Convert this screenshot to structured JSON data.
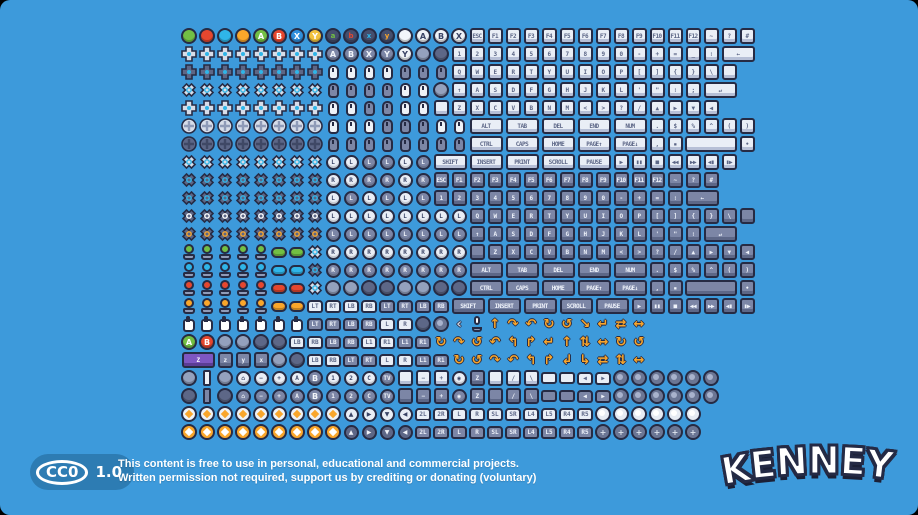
{
  "canvas": {
    "background": "#3d9adb"
  },
  "palette": {
    "outline": "#262b44",
    "key_light": "#e9eef6",
    "key_dark": "#7c86a6",
    "key_purple": "#7e57c2",
    "accent_cyan": "#2fb5e8",
    "accent_orange": "#f9a62b",
    "green": "#72bf44",
    "red": "#e5472f",
    "blue": "#2f8fdd",
    "yellow": "#f9a62b",
    "badge_blue": "#2d7cb3"
  },
  "legend": {
    "c": "circle-button",
    "l": "face-button",
    "lw": "face-button-light",
    "ld": "face-button-dark",
    "s": "small-face-button",
    "g": "plain-button",
    "gd": "plain-button-dark",
    "d": "dpad-plus",
    "dk": "dpad-plus-dark",
    "di": "dpad-diamond",
    "did": "dpad-diamond-dark",
    "o": "dpad-circle",
    "od": "dpad-circle-dark",
    "k": "key",
    "kd": "key-dark",
    "kw": "key-wide",
    "kwd": "key-wide-dark",
    "kwp": "key-wide-purple",
    "q": "key-blank",
    "qd": "key-blank-dark",
    "bks": "backspace-key",
    "bksd": "backspace-key-dark",
    "ent": "enter-key",
    "entd": "enter-key-dark",
    "sp": "spacebar-key",
    "spd": "spacebar-key-dark",
    "m": "mouse",
    "md": "mouse-dark",
    "j": "joystick",
    "v": "pill-button",
    "h": "hand-cursor",
    "w": "console-button",
    "wd": "console-button-dark",
    "wr": "wiimote",
    "wrd": "wiimote-dark",
    "t": "shoulder-button",
    "td": "shoulder-button-dark",
    "tri": "direction-button",
    "trid": "direction-button-dark",
    "b": "trackball",
    "bl": "trackball-light",
    "bp": "trackball-plus",
    "a": "arrow",
    "mic": "microphone",
    "micd": "microphone-dark",
    "tp": "touchpad",
    "tpd": "touchpad-dark",
    "ja": "stick-move",
    "jy": "stick-move-yellow",
    "x": "spacer"
  },
  "grid_rows": [
    [
      "c:#72bf44",
      "c:#e5472f",
      "c:#2fb5e8",
      "c:#f9a62b",
      "l:A:#72bf44",
      "l:B:#e5472f",
      "l:X:#2f8fdd",
      "l:Y:#f2c23e",
      "s:a:#72bf44",
      "s:b:#e5472f",
      "s:x:#2fb5e8",
      "s:y:#f9a62b",
      "c:#f2f5fa",
      "lw:A",
      "lw:B",
      "lw:X",
      "k:ESC",
      "k:F1",
      "k:F2",
      "k:F3",
      "k:F4",
      "k:F5",
      "k:F6",
      "k:F7",
      "k:F8",
      "k:F9",
      "k:F10",
      "k:F11",
      "k:F12",
      "k:~",
      "k:?",
      "k:#"
    ],
    [
      "d",
      "d",
      "d",
      "d",
      "d",
      "d",
      "d",
      "d",
      "ld:A",
      "ld:B",
      "ld:X",
      "ld:Y",
      "lw:Y",
      "g",
      "gd",
      "k:1",
      "k:2",
      "k:3",
      "k:4",
      "k:5",
      "k:6",
      "k:7",
      "k:8",
      "k:9",
      "k:0",
      "k:-",
      "k:+",
      "k:=",
      "k:_",
      "k:∶",
      "bks"
    ],
    [
      "dk",
      "dk",
      "dk",
      "dk",
      "dk",
      "dk",
      "dk",
      "dk",
      "m",
      "m",
      "m",
      "m",
      "md",
      "md",
      "md",
      "k:Q",
      "k:W",
      "k:E",
      "k:R",
      "k:T",
      "k:Y",
      "k:U",
      "k:I",
      "k:O",
      "k:P",
      "k:[",
      "k:]",
      "k:{",
      "k:}",
      "k:\\",
      "q",
      "x"
    ],
    [
      "di",
      "di",
      "di",
      "di",
      "di",
      "di",
      "di",
      "di",
      "md",
      "md",
      "md",
      "md",
      "m",
      "m",
      "g",
      "k:↑",
      "k:A",
      "k:S",
      "k:D",
      "k:F",
      "k:G",
      "k:H",
      "k:J",
      "k:K",
      "k:L",
      "k:'",
      "k:\"",
      "k:∶",
      "k:;",
      "ent",
      "x"
    ],
    [
      "d",
      "d",
      "d",
      "d",
      "d",
      "d",
      "d",
      "d",
      "m",
      "m",
      "md",
      "md",
      "m",
      "m",
      "q",
      "k:Z",
      "k:X",
      "k:C",
      "k:V",
      "k:B",
      "k:N",
      "k:M",
      "k:<",
      "k:>",
      "k:?",
      "k:/",
      "k:▲",
      "k:▶",
      "k:▼",
      "k:◀",
      "x",
      "x"
    ],
    [
      "o",
      "o",
      "o",
      "o",
      "o",
      "o",
      "o",
      "o",
      "m",
      "m",
      "m",
      "md",
      "md",
      "md",
      "m",
      "m",
      "kw:ALT",
      "kw:TAB",
      "kw:DEL",
      "kw:END",
      "kw:NUM",
      "k:.",
      "k:$",
      "k:%",
      "k:^",
      "k:(",
      "k:)"
    ],
    [
      "od",
      "od",
      "od",
      "od",
      "od",
      "od",
      "od",
      "od",
      "md",
      "md",
      "md",
      "md",
      "md",
      "md",
      "md",
      "md",
      "kw:CTRL",
      "kw:CAPS",
      "kw:HOME",
      "kw:PAGE↑",
      "kw:PAGE↓",
      "k:,",
      "k:▪",
      "sp",
      "k:•"
    ],
    [
      "di",
      "di",
      "di",
      "di",
      "di",
      "di",
      "di",
      "di",
      "w:L",
      "w:L",
      "wd:L",
      "wd:L",
      "w:L",
      "wd:L",
      "kw:SHIFT",
      "kw:INSERT",
      "kw:PRINT",
      "kw:SCROLL",
      "kw:PAUSE",
      "k:▶",
      "k:▮▮",
      "k:■",
      "k:◀◀",
      "k:▶▶",
      "k:◀▮",
      "k:▮▶",
      "x"
    ],
    [
      "did",
      "did",
      "did",
      "did",
      "did",
      "did",
      "did",
      "did",
      "w:R",
      "w:R",
      "wd:R",
      "wd:R",
      "w:R",
      "wd:R",
      "kd:ESC",
      "kd:F1",
      "kd:F2",
      "kd:F3",
      "kd:F4",
      "kd:F5",
      "kd:F6",
      "kd:F7",
      "kd:F8",
      "kd:F9",
      "kd:F10",
      "kd:F11",
      "kd:F12",
      "kd:~",
      "kd:?",
      "kd:#",
      "x",
      "x"
    ],
    [
      "did",
      "did",
      "did",
      "did",
      "did",
      "did",
      "did",
      "did",
      "w:L",
      "wd:L",
      "w:L",
      "wd:L",
      "w:L",
      "wd:L",
      "kd:1",
      "kd:2",
      "kd:3",
      "kd:4",
      "kd:5",
      "kd:6",
      "kd:7",
      "kd:8",
      "kd:9",
      "kd:0",
      "kd:-",
      "kd:+",
      "kd:=",
      "kd:∶",
      "bksd",
      "x"
    ],
    [
      "did:w",
      "did:w",
      "did:w",
      "did:w",
      "did:w",
      "did:w",
      "did:w",
      "did:w",
      "w:L",
      "w:L",
      "w:L",
      "w:L",
      "w:L",
      "w:L",
      "w:L",
      "w:L",
      "kd:Q",
      "kd:W",
      "kd:E",
      "kd:R",
      "kd:T",
      "kd:Y",
      "kd:U",
      "kd:I",
      "kd:O",
      "kd:P",
      "kd:[",
      "kd:]",
      "kd:{",
      "kd:}",
      "kd:\\",
      "qd"
    ],
    [
      "did:o",
      "did:o",
      "did:o",
      "did:o",
      "did:o",
      "did:o",
      "did:o",
      "did:o",
      "wd:L",
      "wd:L",
      "wd:L",
      "wd:L",
      "wd:L",
      "wd:L",
      "wd:L",
      "wd:L",
      "kd:↑",
      "kd:A",
      "kd:S",
      "kd:D",
      "kd:F",
      "kd:G",
      "kd:H",
      "kd:J",
      "kd:K",
      "kd:L",
      "kd:'",
      "kd:\"",
      "kd:∶",
      "entd",
      "x"
    ],
    [
      "j:#72bf44",
      "j:#72bf44",
      "j:#72bf44",
      "j:#72bf44",
      "j:#72bf44",
      "v:#72bf44",
      "v:#72bf44",
      "di",
      "w:R",
      "w:R",
      "w:R",
      "w:R",
      "w:R",
      "w:R",
      "w:R",
      "w:R",
      "qd",
      "kd:Z",
      "kd:X",
      "kd:C",
      "kd:V",
      "kd:B",
      "kd:N",
      "kd:M",
      "kd:<",
      "kd:>",
      "kd:?",
      "kd:/",
      "kd:▲",
      "kd:▶",
      "kd:▼",
      "kd:◀"
    ],
    [
      "j:#2fb5e8",
      "j:#2fb5e8",
      "j:#2fb5e8",
      "j:#2fb5e8",
      "j:#2fb5e8",
      "v:#2fb5e8",
      "v:#2fb5e8",
      "did",
      "wd:R",
      "wd:R",
      "wd:R",
      "wd:R",
      "wd:R",
      "wd:R",
      "wd:R",
      "wd:R",
      "kwd:ALT",
      "kwd:TAB",
      "kwd:DEL",
      "kwd:END",
      "kwd:NUM",
      "kd:.",
      "kd:$",
      "kd:%",
      "kd:^",
      "kd:(",
      "kd:)"
    ],
    [
      "j:#e5472f",
      "j:#e5472f",
      "j:#e5472f",
      "j:#e5472f",
      "j:#e5472f",
      "v:#e5472f",
      "v:#e5472f",
      "di",
      "g",
      "g",
      "gd",
      "gd",
      "g",
      "g",
      "gd",
      "gd",
      "kwd:CTRL",
      "kwd:CAPS",
      "kwd:HOME",
      "kwd:PAGE↑",
      "kwd:PAGE↓",
      "kd:,",
      "kd:▪",
      "spd",
      "kd:•"
    ],
    [
      "j:#f9a62b",
      "j:#f9a62b",
      "j:#f9a62b",
      "j:#f9a62b",
      "j:#f9a62b",
      "v:#f9a62b",
      "v:#f9a62b",
      "t:LT",
      "t:RT",
      "t:LB",
      "t:RB",
      "td:LT",
      "td:RT",
      "td:LB",
      "td:RB",
      "kwd:SHIFT",
      "kwd:INSERT",
      "kwd:PRINT",
      "kwd:SCROLL",
      "kwd:PAUSE",
      "kd:▶",
      "kd:▮▮",
      "kd:■",
      "kd:◀◀",
      "kd:▶▶",
      "kd:◀▮",
      "kd:▮▶",
      "x"
    ],
    [
      "h",
      "h",
      "h",
      "h",
      "h",
      "h",
      "h",
      "td:LT",
      "td:RT",
      "td:LB",
      "td:RB",
      "t:L",
      "t:R",
      "gd",
      "b",
      "a:‹:#cfd6e4",
      "mic",
      "a:↑",
      "a:↷",
      "a:↶",
      "a:↻",
      "a:↺",
      "a:↘",
      "a:↵",
      "a:⇄",
      "a:↔",
      "x",
      "x",
      "x",
      "x",
      "x",
      "x"
    ],
    [
      "l:A:#72bf44",
      "l:B:#e5472f",
      "g",
      "g",
      "gd",
      "gd",
      "t:LB",
      "t:RB",
      "td:LB",
      "td:RB",
      "t:L1",
      "t:R1",
      "td:L1",
      "td:R1",
      "a:↻",
      "a:↷",
      "a:↺",
      "a:↶",
      "a:↰",
      "a:↱",
      "a:↵",
      "a:↑",
      "a:⇅",
      "a:↔",
      "a:↻",
      "a:↺",
      "x",
      "x",
      "x",
      "x",
      "x",
      "x"
    ],
    [
      "kwp:Z",
      "kd:z",
      "kd:y",
      "kd:x",
      "g",
      "gd",
      "t:LB",
      "t:RB",
      "td:LT",
      "td:RT",
      "t:L",
      "t:R",
      "td:L1",
      "td:R1",
      "a:↻",
      "a:↺",
      "a:↷",
      "a:↶",
      "a:↰",
      "a:↱",
      "a:↲",
      "a:↳",
      "a:⇄",
      "a:⇅",
      "a:↔",
      "x",
      "x",
      "x",
      "x",
      "x",
      "x"
    ],
    [
      "g",
      "wr",
      "g",
      "w:⌂",
      "w:−",
      "w:+",
      "w:A",
      "ld:B",
      "w:1",
      "w:2",
      "w:C",
      "wd:TV",
      "q",
      "k:−",
      "k:+",
      "w:◉",
      "kd:Z",
      "q",
      "k:/",
      "k:\\",
      "tp",
      "tp",
      "t:◀",
      "t:▶",
      "b",
      "b",
      "b",
      "b",
      "b",
      "b",
      "x",
      "x"
    ],
    [
      "gd",
      "wrd",
      "gd",
      "wd:⌂",
      "wd:−",
      "wd:+",
      "wd:A",
      "ld:B",
      "wd:1",
      "wd:2",
      "wd:C",
      "wd:TV",
      "qd",
      "kd:−",
      "kd:+",
      "wd:◉",
      "kd:Z",
      "qd",
      "kd:/",
      "kd:\\",
      "tpd",
      "tpd",
      "td:◀",
      "td:▶",
      "b",
      "b",
      "b",
      "b",
      "b",
      "b",
      "x",
      "x"
    ],
    [
      "ja",
      "ja",
      "ja",
      "ja",
      "ja",
      "ja",
      "ja",
      "ja",
      "ja",
      "tri:▲",
      "tri:▶",
      "tri:▼",
      "tri:◀",
      "t:2L",
      "t:2R",
      "t:L",
      "t:R",
      "t:SL",
      "t:SR",
      "t:L4",
      "t:L5",
      "t:R4",
      "t:R5",
      "bl",
      "bl",
      "bl",
      "bl",
      "bl",
      "bl",
      "x",
      "x",
      "x"
    ],
    [
      "jy",
      "jy",
      "jy",
      "jy",
      "jy",
      "jy",
      "jy",
      "jy",
      "jy",
      "trid:▲",
      "trid:▶",
      "trid:▼",
      "trid:◀",
      "td:2L",
      "td:2R",
      "td:L",
      "td:R",
      "td:SL",
      "td:SR",
      "td:L4",
      "td:L5",
      "td:R4",
      "td:R5",
      "bp",
      "bp",
      "bp",
      "bp",
      "bp",
      "bp",
      "x",
      "x",
      "x"
    ]
  ],
  "footer": {
    "license": {
      "badge": "CC0",
      "version": "1.0"
    },
    "line1": "This content is free to use in personal, educational and commercial projects.",
    "line2": "Written permission not required, support us by crediting or donating (voluntary)"
  },
  "logo": {
    "text": "KENNEY"
  }
}
